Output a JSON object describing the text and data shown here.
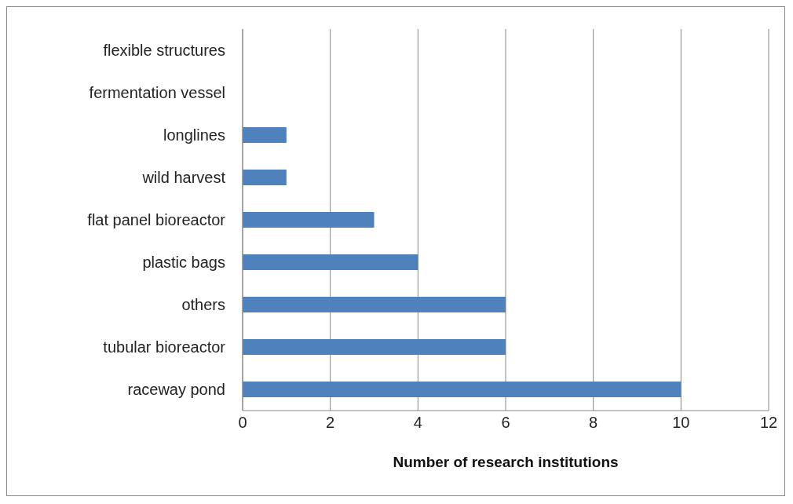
{
  "chart_data": {
    "type": "bar",
    "orientation": "horizontal",
    "xlabel": "Number of research institutions",
    "categories": [
      "flexible structures",
      "fermentation vessel",
      "longlines",
      "wild harvest",
      "flat panel bioreactor",
      "plastic bags",
      "others",
      "tubular bioreactor",
      "raceway pond"
    ],
    "values": [
      0,
      0,
      1,
      1,
      3,
      4,
      6,
      6,
      10
    ],
    "color": "#4f81bd",
    "xlim": [
      0,
      12
    ],
    "xticks": [
      0,
      2,
      4,
      6,
      8,
      10,
      12
    ],
    "grid": "x"
  }
}
